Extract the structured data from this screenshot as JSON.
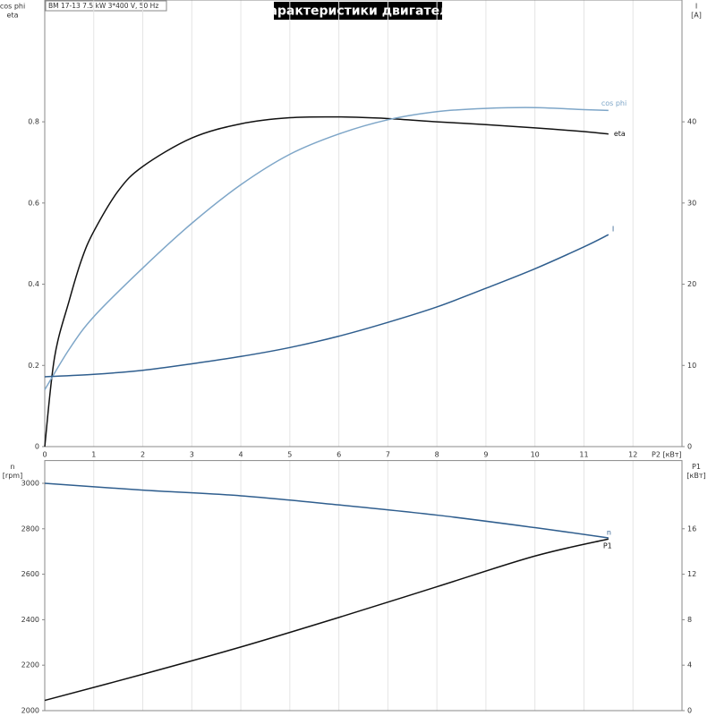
{
  "header": {
    "title": "Характеристики двигателя",
    "info": "BM 17-13   7.5 kW   3*400 V, 50 Hz"
  },
  "chart_data": [
    {
      "type": "line",
      "ylabel": [
        "cos phi",
        "eta"
      ],
      "y2label": [
        "I",
        "[A]"
      ],
      "xlabel": "P2 [кВт]",
      "xlim": [
        0,
        13
      ],
      "xticks": [
        0,
        1,
        2,
        3,
        4,
        5,
        6,
        7,
        8,
        9,
        10,
        11,
        12
      ],
      "xtick_labels": true,
      "ylim": [
        0,
        1.1
      ],
      "yticks": [
        0,
        0.2,
        0.4,
        0.6,
        0.8
      ],
      "y2lim": [
        0,
        55
      ],
      "y2ticks": [
        0,
        10,
        20,
        30,
        40
      ],
      "grid": true,
      "series": [
        {
          "name": "eta",
          "color": "#111111",
          "x": [
            0,
            0.2,
            0.5,
            0.75,
            1,
            1.5,
            2,
            3,
            4,
            5,
            6,
            7,
            8,
            9,
            10,
            11,
            11.5
          ],
          "values": [
            0,
            0.22,
            0.36,
            0.46,
            0.53,
            0.63,
            0.69,
            0.76,
            0.795,
            0.81,
            0.812,
            0.808,
            0.8,
            0.793,
            0.785,
            0.776,
            0.77
          ]
        },
        {
          "name": "cos phi",
          "color": "#7ea6c8",
          "x": [
            0,
            0.5,
            1,
            2,
            3,
            4,
            5,
            6,
            7,
            8,
            9,
            10,
            11,
            11.5
          ],
          "values": [
            0.14,
            0.24,
            0.32,
            0.44,
            0.55,
            0.645,
            0.72,
            0.77,
            0.805,
            0.825,
            0.833,
            0.835,
            0.83,
            0.828
          ]
        },
        {
          "name": "I",
          "color": "#2f5e8e",
          "axis": "y2",
          "x": [
            0,
            1,
            2,
            3,
            4,
            5,
            6,
            7,
            8,
            9,
            10,
            11,
            11.5
          ],
          "values": [
            8.6,
            8.9,
            9.4,
            10.2,
            11.1,
            12.2,
            13.6,
            15.3,
            17.2,
            19.5,
            21.9,
            24.6,
            26.1
          ]
        }
      ]
    },
    {
      "type": "line",
      "ylabel": [
        "n",
        "[rpm]"
      ],
      "y2label": [
        "P1",
        "[кВт]"
      ],
      "xlim": [
        0,
        13
      ],
      "xticks": [
        0,
        1,
        2,
        3,
        4,
        5,
        6,
        7,
        8,
        9,
        10,
        11,
        12
      ],
      "xtick_labels": false,
      "ylim": [
        2000,
        3100
      ],
      "yticks": [
        2000,
        2200,
        2400,
        2600,
        2800,
        3000
      ],
      "y2lim": [
        0,
        22
      ],
      "y2ticks": [
        0,
        4,
        8,
        12,
        16
      ],
      "grid": true,
      "series": [
        {
          "name": "n",
          "color": "#2f5e8e",
          "x": [
            0,
            2,
            4,
            6,
            8,
            10,
            11.5
          ],
          "values": [
            3000,
            2970,
            2945,
            2905,
            2860,
            2805,
            2760
          ]
        },
        {
          "name": "P1",
          "color": "#111111",
          "axis": "y2",
          "x": [
            0,
            2,
            4,
            6,
            8,
            10,
            11.5
          ],
          "values": [
            0.9,
            3.2,
            5.6,
            8.2,
            10.9,
            13.6,
            15.1
          ]
        }
      ]
    }
  ]
}
